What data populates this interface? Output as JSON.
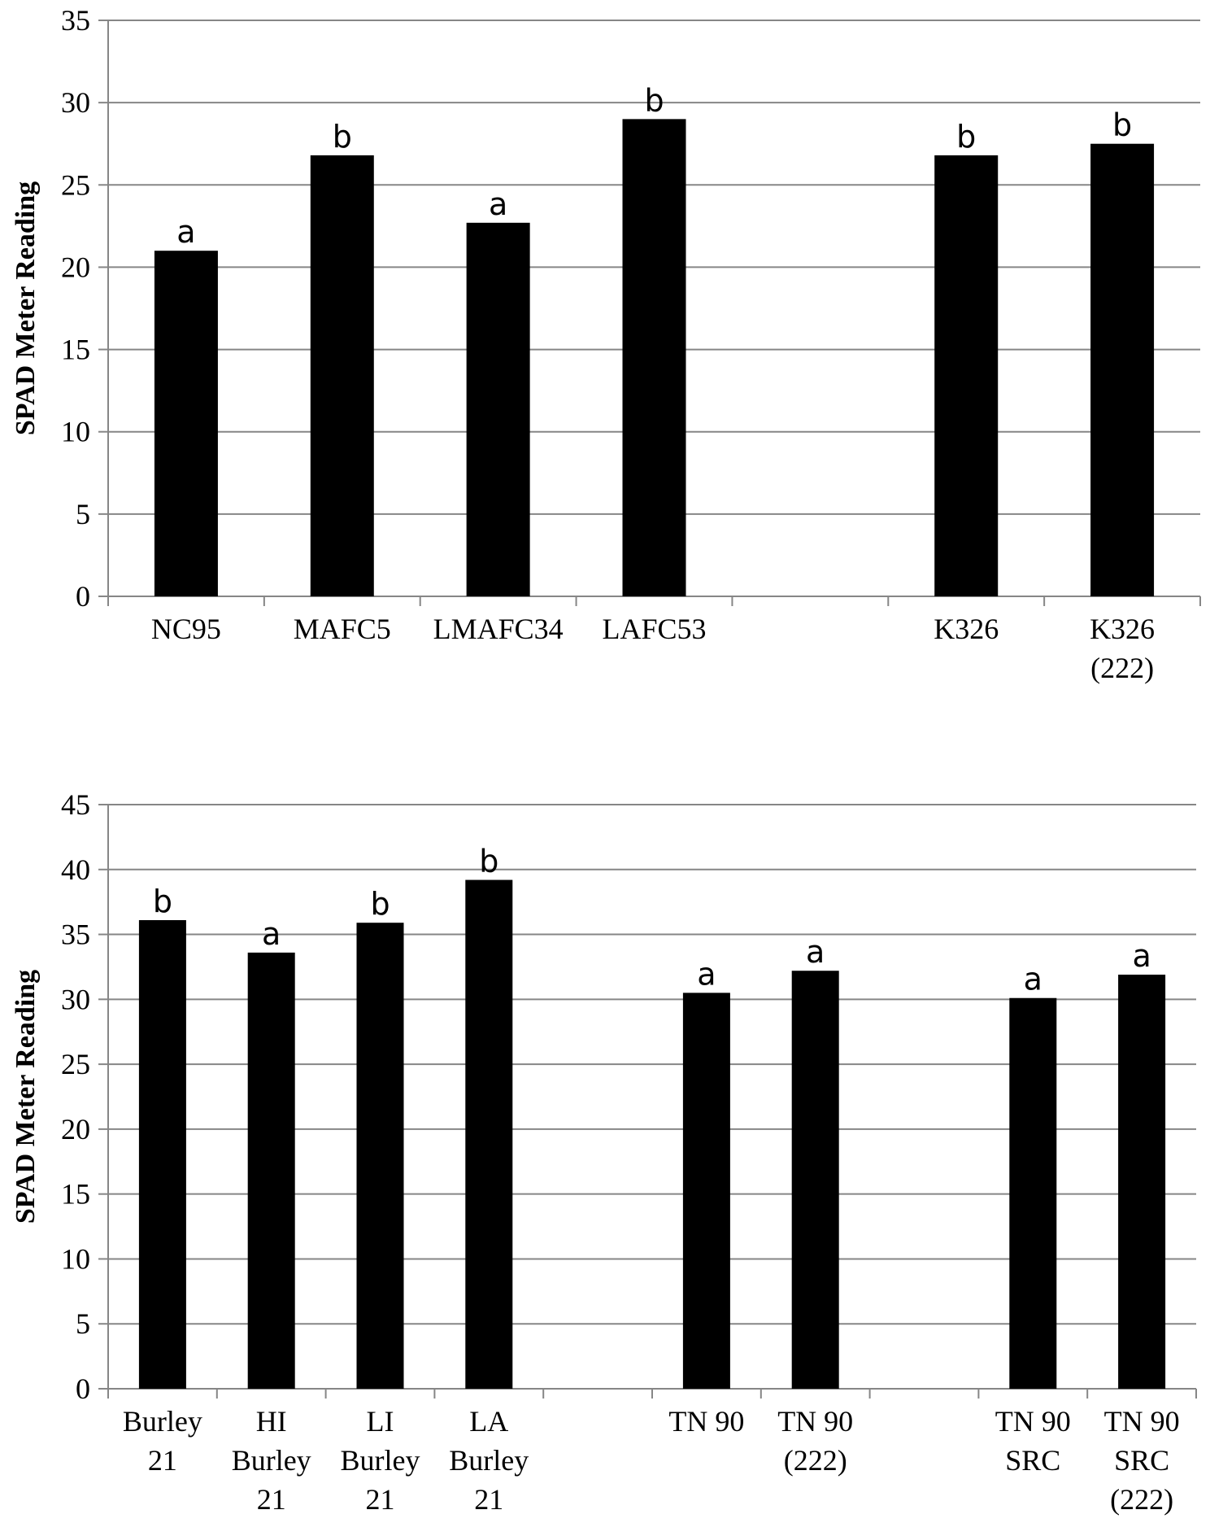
{
  "chart_data": [
    {
      "type": "bar",
      "ylabel": "SPAD Meter Reading",
      "ylim": [
        0,
        35
      ],
      "yticks": [
        0,
        5,
        10,
        15,
        20,
        25,
        30,
        35
      ],
      "grid": true,
      "bar_color": "#000000",
      "grid_color": "#868686",
      "categories": [
        [
          "NC95"
        ],
        [
          "MAFC5"
        ],
        [
          "LMAFC34"
        ],
        [
          "LAFC53"
        ],
        [],
        [
          "K326"
        ],
        [
          "K326",
          "(222)"
        ]
      ],
      "values": [
        21.0,
        26.8,
        22.7,
        29.0,
        null,
        26.8,
        27.5
      ],
      "data_labels": [
        "a",
        "b",
        "a",
        "b",
        "",
        "b",
        "b"
      ]
    },
    {
      "type": "bar",
      "ylabel": "SPAD Meter Reading",
      "ylim": [
        0,
        45
      ],
      "yticks": [
        0,
        5,
        10,
        15,
        20,
        25,
        30,
        35,
        40,
        45
      ],
      "grid": true,
      "bar_color": "#000000",
      "grid_color": "#868686",
      "categories": [
        [
          "Burley",
          "21"
        ],
        [
          "HI",
          "Burley",
          "21"
        ],
        [
          "LI",
          "Burley",
          "21"
        ],
        [
          "LA",
          "Burley",
          "21"
        ],
        [],
        [
          "TN 90"
        ],
        [
          "TN 90",
          "(222)"
        ],
        [],
        [
          "TN 90",
          "SRC"
        ],
        [
          "TN 90",
          "SRC",
          "(222)"
        ]
      ],
      "values": [
        36.1,
        33.6,
        35.9,
        39.2,
        null,
        30.5,
        32.2,
        null,
        30.1,
        31.9
      ],
      "data_labels": [
        "b",
        "a",
        "b",
        "b",
        "",
        "a",
        "a",
        "",
        "a",
        "a"
      ]
    }
  ]
}
